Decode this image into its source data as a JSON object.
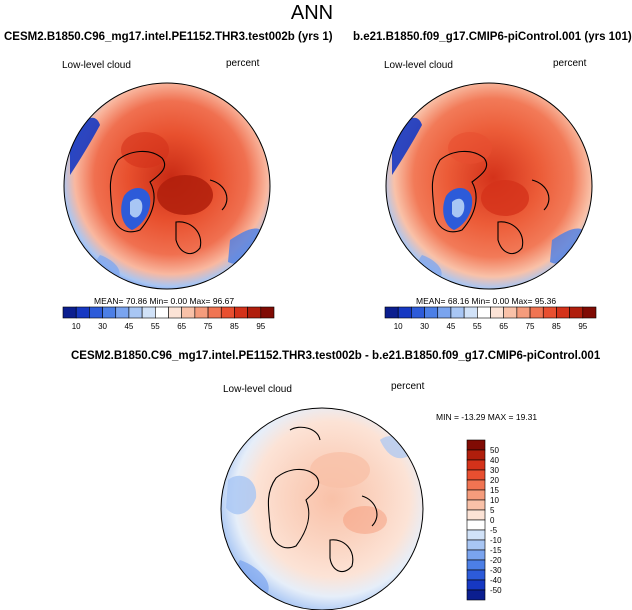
{
  "main_title": "ANN",
  "panels": [
    {
      "title": "CESM2.B1850.C96_mg17.intel.PE1152.THR3.test002b (yrs 1)",
      "left_label": "Low-level cloud",
      "right_label": "percent",
      "stats": "MEAN= 70.86  Min=   0.00  Max=  96.67"
    },
    {
      "title": "b.e21.B1850.f09_g17.CMIP6-piControl.001 (yrs 101)",
      "left_label": "Low-level cloud",
      "right_label": "percent",
      "stats": "MEAN= 68.16  Min=   0.00  Max=  95.36"
    },
    {
      "title": "CESM2.B1850.C96_mg17.intel.PE1152.THR3.test002b - b.e21.B1850.f09_g17.CMIP6-piControl.001",
      "left_label": "Low-level cloud",
      "right_label": "percent",
      "stats": "MIN = -13.29 MAX =  19.31"
    }
  ],
  "colorbar_abs": {
    "labels": [
      "10",
      "30",
      "45",
      "55",
      "65",
      "75",
      "85",
      "95"
    ],
    "colors": [
      "#0b1e8f",
      "#1638c2",
      "#2d5bd9",
      "#4c7fe6",
      "#7aa4ef",
      "#a8c6f4",
      "#d1e2f8",
      "#ffffff",
      "#fce3d6",
      "#f9c1a8",
      "#f59c7c",
      "#f07452",
      "#e84f30",
      "#d4321a",
      "#b01e0c",
      "#800b04"
    ]
  },
  "colorbar_diff": {
    "labels": [
      "50",
      "40",
      "30",
      "20",
      "15",
      "10",
      "5",
      "0",
      "-5",
      "-10",
      "-15",
      "-20",
      "-30",
      "-40",
      "-50"
    ],
    "colors": [
      "#800b04",
      "#b01e0c",
      "#d4321a",
      "#e84f30",
      "#f07452",
      "#f59c7c",
      "#f9c1a8",
      "#fce3d6",
      "#ffffff",
      "#d1e2f8",
      "#a8c6f4",
      "#7aa4ef",
      "#4c7fe6",
      "#2d5bd9",
      "#1638c2",
      "#0b1e8f"
    ]
  }
}
